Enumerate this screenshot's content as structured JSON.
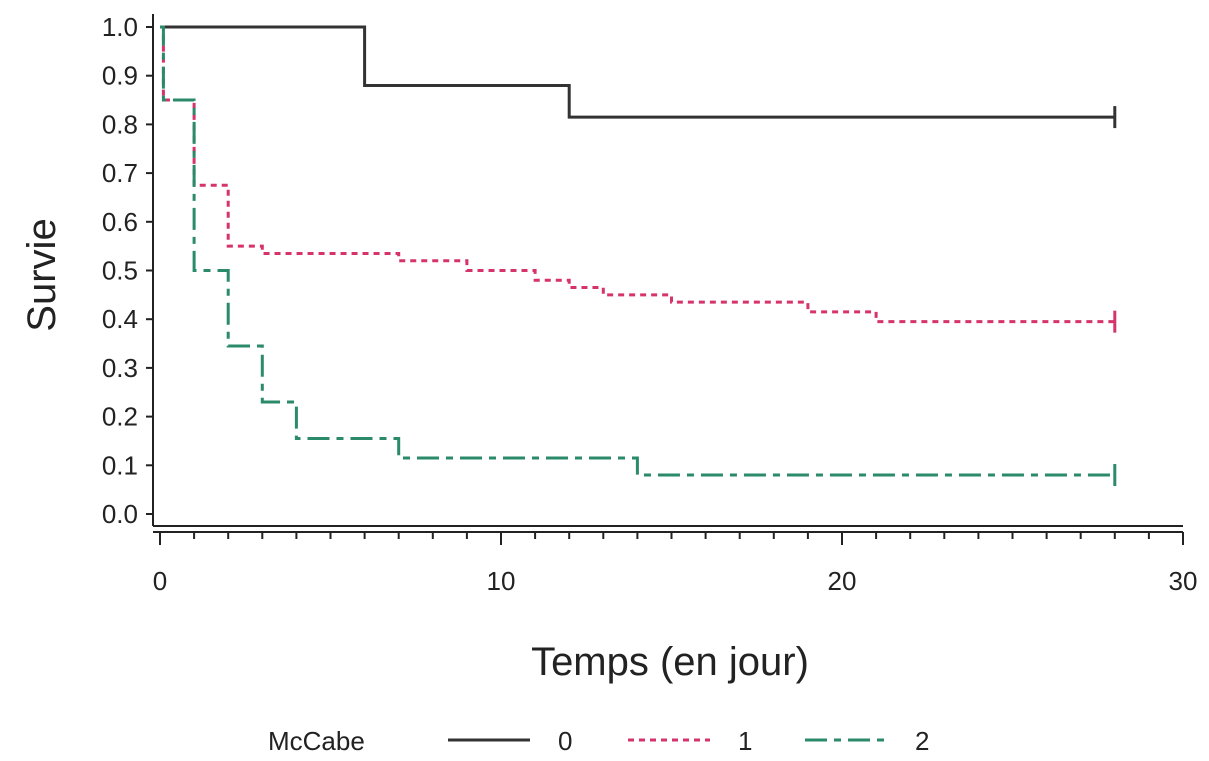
{
  "chart_data": {
    "type": "line",
    "xlabel": "Temps (en jour)",
    "ylabel": "Survie",
    "xlim": [
      0,
      30
    ],
    "ylim": [
      0,
      1
    ],
    "x_ticks": [
      "0",
      "10",
      "20",
      "30"
    ],
    "y_ticks": [
      "0.0",
      "0.1",
      "0.2",
      "0.3",
      "0.4",
      "0.5",
      "0.6",
      "0.7",
      "0.8",
      "0.9",
      "1.0"
    ],
    "grid": false,
    "legend": {
      "title": "McCabe",
      "position": "bottom"
    },
    "series": [
      {
        "name": "0",
        "color": "#333333",
        "style": "solid",
        "steps": [
          [
            0,
            1.0
          ],
          [
            6,
            0.88
          ],
          [
            12,
            0.815
          ]
        ],
        "end": 28
      },
      {
        "name": "1",
        "color": "#d6336c",
        "style": "dotted",
        "steps": [
          [
            0,
            1.0
          ],
          [
            0.1,
            0.85
          ],
          [
            1,
            0.675
          ],
          [
            2,
            0.55
          ],
          [
            3,
            0.535
          ],
          [
            7,
            0.52
          ],
          [
            9,
            0.5
          ],
          [
            11,
            0.48
          ],
          [
            12,
            0.465
          ],
          [
            13,
            0.45
          ],
          [
            15,
            0.435
          ],
          [
            19,
            0.415
          ],
          [
            21,
            0.395
          ]
        ],
        "end": 28
      },
      {
        "name": "2",
        "color": "#2a8a6a",
        "style": "dashdot",
        "steps": [
          [
            0,
            1.0
          ],
          [
            0.1,
            0.85
          ],
          [
            1,
            0.5
          ],
          [
            2,
            0.345
          ],
          [
            3,
            0.23
          ],
          [
            4,
            0.155
          ],
          [
            7,
            0.115
          ],
          [
            14,
            0.08
          ]
        ],
        "end": 28
      }
    ]
  }
}
